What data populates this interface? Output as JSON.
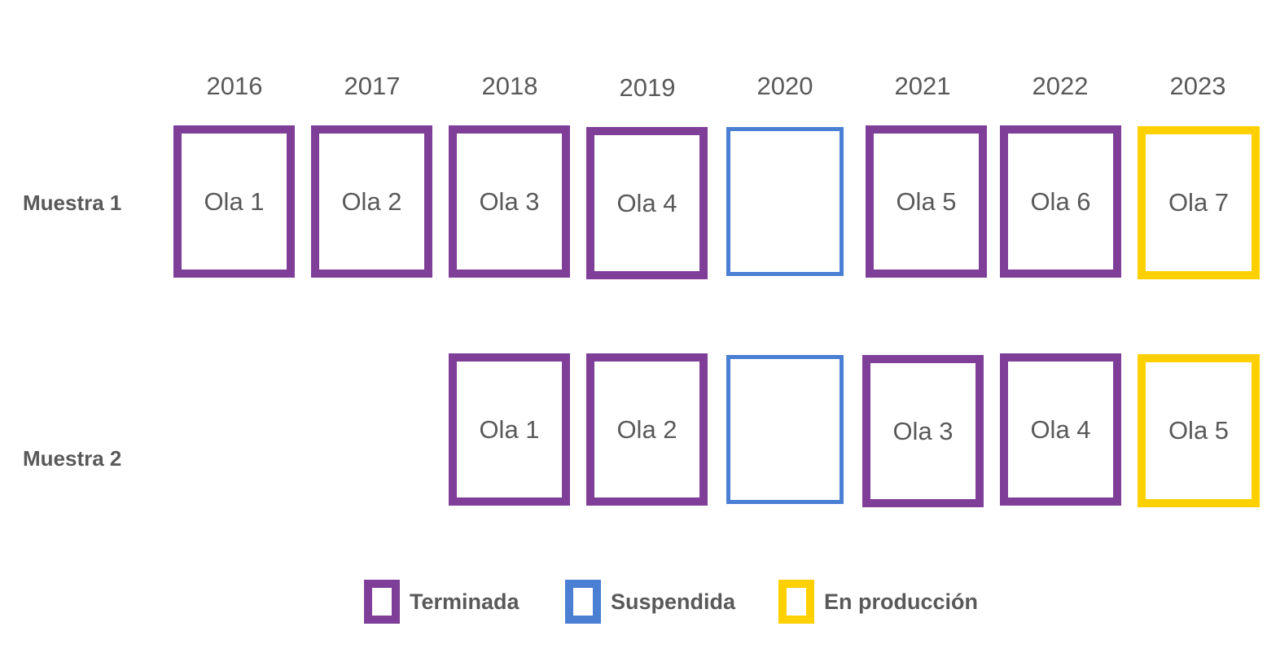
{
  "years": [
    "2016",
    "2017",
    "2018",
    "2019",
    "2020",
    "2021",
    "2022",
    "2023"
  ],
  "rows": [
    {
      "label": "Muestra 1",
      "cells": [
        {
          "year": "2016",
          "status": "terminada",
          "label": "Ola 1"
        },
        {
          "year": "2017",
          "status": "terminada",
          "label": "Ola 2"
        },
        {
          "year": "2018",
          "status": "terminada",
          "label": "Ola 3"
        },
        {
          "year": "2019",
          "status": "terminada",
          "label": "Ola 4"
        },
        {
          "year": "2020",
          "status": "suspendida",
          "label": ""
        },
        {
          "year": "2021",
          "status": "terminada",
          "label": "Ola 5"
        },
        {
          "year": "2022",
          "status": "terminada",
          "label": "Ola 6"
        },
        {
          "year": "2023",
          "status": "produccion",
          "label": "Ola 7"
        }
      ]
    },
    {
      "label": "Muestra 2",
      "cells": [
        {
          "year": "2018",
          "status": "terminada",
          "label": "Ola 1"
        },
        {
          "year": "2019",
          "status": "terminada",
          "label": "Ola 2"
        },
        {
          "year": "2020",
          "status": "suspendida",
          "label": ""
        },
        {
          "year": "2021",
          "status": "terminada",
          "label": "Ola 3"
        },
        {
          "year": "2022",
          "status": "terminada",
          "label": "Ola 4"
        },
        {
          "year": "2023",
          "status": "produccion",
          "label": "Ola 5"
        }
      ]
    }
  ],
  "legend": [
    {
      "status": "terminada",
      "label": "Terminada",
      "color": "#7F3F98"
    },
    {
      "status": "suspendida",
      "label": "Suspendida",
      "color": "#4A7FD4"
    },
    {
      "status": "produccion",
      "label": "En producción",
      "color": "#FFD000"
    }
  ]
}
